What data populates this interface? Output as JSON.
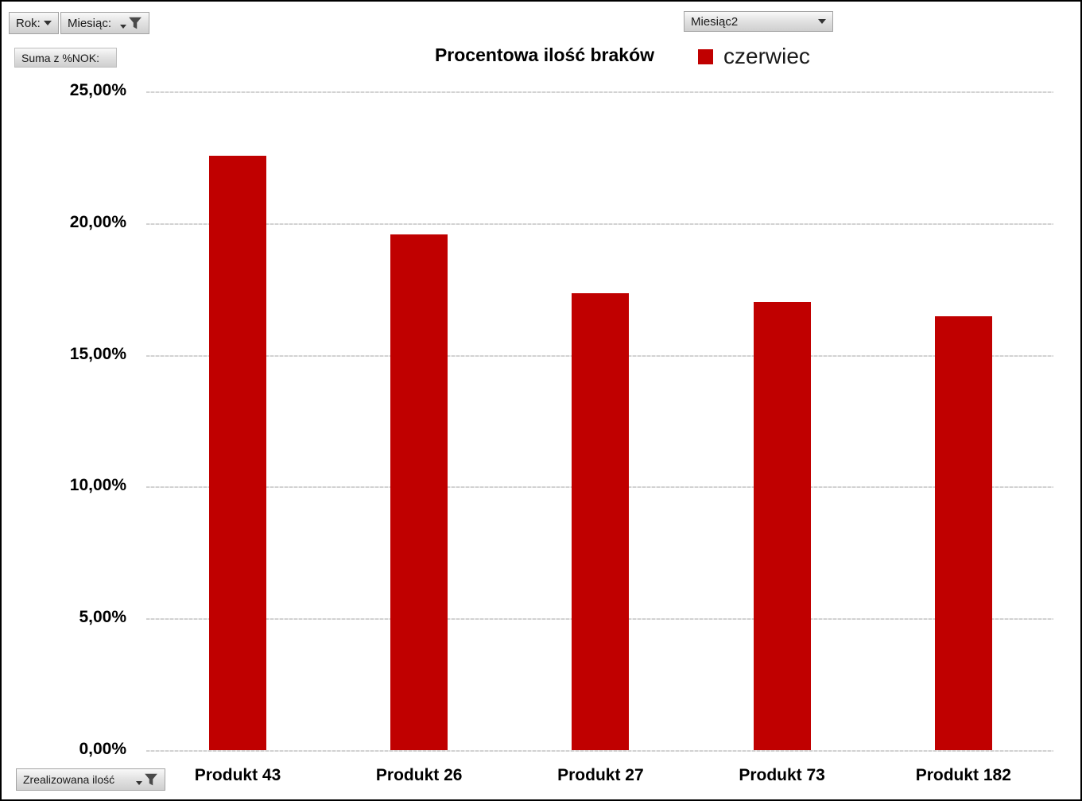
{
  "filters": {
    "rok_button_label": "Rok:",
    "miesiac_button_label": "Miesiąc:",
    "suma_button_label": "Suma z %NOK:",
    "miesiac2_dropdown_label": "Miesiąc2",
    "zrealizowana_button_label": "Zrealizowana ilość"
  },
  "icons": {
    "dropdown_arrow": "triangle-down",
    "filter_funnel": "funnel"
  },
  "colors": {
    "bar_red": "#c00000",
    "grid_line": "#d2d2d2",
    "button_border": "#a3a3a3"
  },
  "chart_data": {
    "type": "bar",
    "title": "Procentowa ilość braków",
    "categories": [
      "Produkt 43",
      "Produkt 26",
      "Produkt 27",
      "Produkt 73",
      "Produkt 182"
    ],
    "series": [
      {
        "name": "czerwiec",
        "color": "#c00000",
        "values": [
          22.6,
          19.61,
          17.38,
          17.05,
          16.51
        ]
      }
    ],
    "xlabel": "",
    "ylabel": "",
    "ylim": [
      0,
      25
    ],
    "ytick_step": 5,
    "ytick_labels": [
      "0,00%",
      "5,00%",
      "10,00%",
      "15,00%",
      "20,00%",
      "25,00%"
    ],
    "grid": true,
    "legend_position": "top-right"
  }
}
